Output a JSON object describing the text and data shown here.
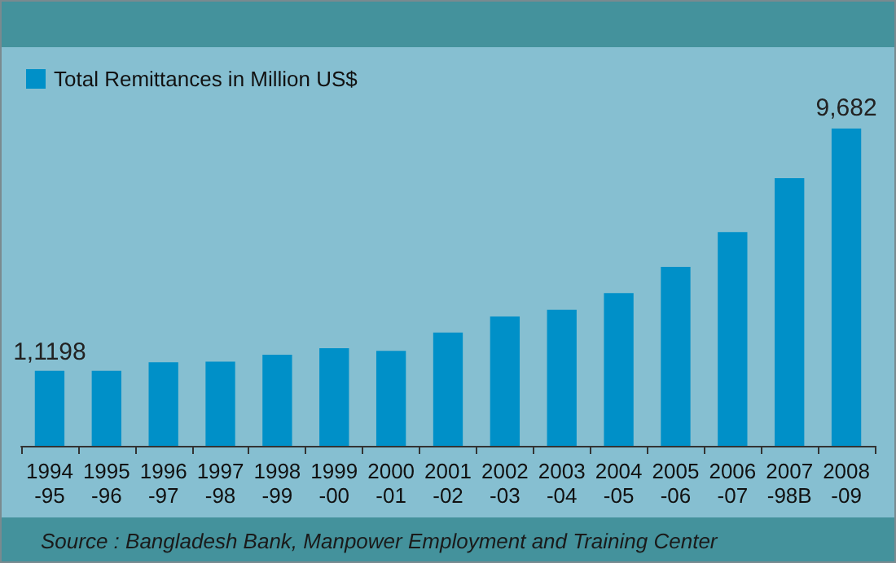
{
  "chart_data": {
    "type": "bar",
    "categories": [
      "1994\n-95",
      "1995\n-96",
      "1996\n-97",
      "1997\n-98",
      "1998\n-99",
      "1999\n-00",
      "2000\n-01",
      "2001\n-02",
      "2002\n-03",
      "2003\n-04",
      "2004\n-05",
      "2005\n-06",
      "2006\n-07",
      "2007\n-98B",
      "2008\n-09"
    ],
    "series": [
      {
        "name": "Total Remittances in Million US$",
        "color": "#0090c8",
        "values": [
          2290,
          2290,
          2550,
          2570,
          2780,
          2980,
          2900,
          3460,
          3950,
          4150,
          4660,
          5460,
          6520,
          8170,
          9682
        ],
        "value_labels": [
          null,
          null,
          null,
          null,
          null,
          null,
          null,
          null,
          null,
          null,
          null,
          null,
          null,
          null,
          "9,682"
        ]
      }
    ],
    "legend": "top left",
    "grid": false,
    "annotations": [
      {
        "text": "1,1198",
        "x": "1994\n-95",
        "y": 2290
      },
      "Source : Bangladesh Bank, Manpower Employment and Training Center"
    ]
  }
}
